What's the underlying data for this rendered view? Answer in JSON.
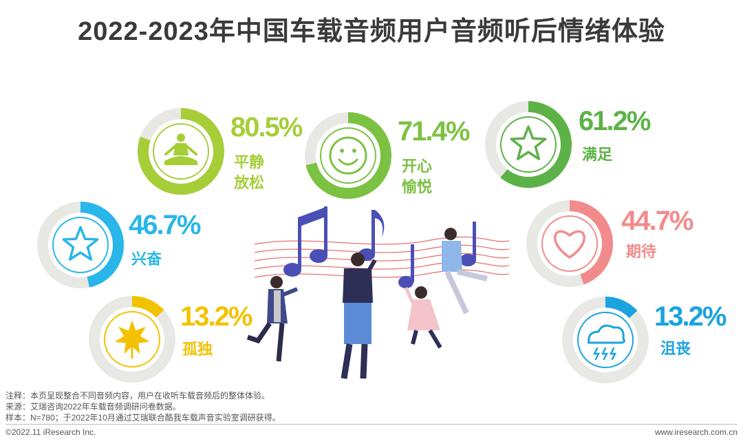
{
  "title": "2022-2023年中国车载音频用户音频听后情绪体验",
  "chart_data": {
    "type": "donut",
    "items": [
      {
        "label": "平静\n放松",
        "percent": 80.5,
        "color": "#a6ce39"
      },
      {
        "label": "开心\n愉悦",
        "percent": 71.4,
        "color": "#7cc242"
      },
      {
        "label": "满足",
        "percent": 61.2,
        "color": "#5cb247"
      },
      {
        "label": "兴奋",
        "percent": 46.7,
        "color": "#29b6e8"
      },
      {
        "label": "期待",
        "percent": 44.7,
        "color": "#f28b8b"
      },
      {
        "label": "孤独",
        "percent": 13.2,
        "color": "#f2c200"
      },
      {
        "label": "沮丧",
        "percent": 13.2,
        "color": "#1aa3e0"
      }
    ]
  },
  "icons": [
    "meditation-icon",
    "smiley-icon",
    "star-icon",
    "star-icon",
    "heart-icon",
    "leaf-icon",
    "storm-cloud-icon"
  ],
  "notes": [
    "注释：本页呈现整合不同音频内容，用户在收听车载音频后的整体体验。",
    "来源：艾瑞咨询2022年车载音频调研问卷数据。",
    "样本：N=780；于2022年10月通过艾瑞联合酷我车载声音实验室调研获得。"
  ],
  "footer": {
    "copyright": "©2022.11 iResearch Inc.",
    "site": "www.iresearch.com.cn"
  }
}
